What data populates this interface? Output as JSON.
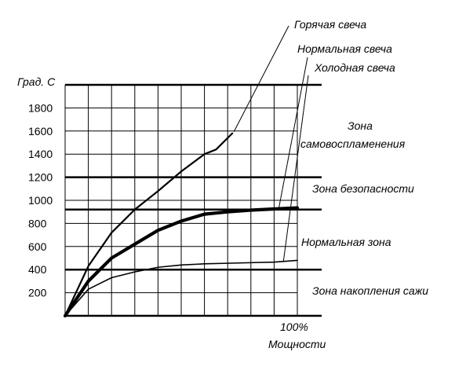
{
  "chart_data": {
    "type": "line",
    "ylabel": "Град. С",
    "xlabel_lines": [
      "100%",
      "Мощности"
    ],
    "yticks": [
      200,
      400,
      600,
      800,
      1000,
      1200,
      1400,
      1600,
      1800
    ],
    "ylim": [
      0,
      2000
    ],
    "xlim": [
      0,
      100
    ],
    "x_tick_label": "100%",
    "x_tick_value": 100,
    "grid": true,
    "zone_boundaries": [
      400,
      920,
      1200,
      2000
    ],
    "zones": [
      {
        "label": "Зона накопления сажи",
        "from": 0,
        "to": 400
      },
      {
        "label": "Нормальная зона",
        "from": 400,
        "to": 920
      },
      {
        "label": "Зона безопасности",
        "from": 920,
        "to": 1200
      },
      {
        "label_lines": [
          "Зона",
          "самовоспламенения"
        ],
        "from": 1200,
        "to": 2000
      }
    ],
    "series": [
      {
        "name": "Горячая свеча",
        "line_weight": "medium",
        "x": [
          0,
          10,
          20,
          30,
          40,
          50,
          60,
          65,
          70,
          72
        ],
        "y": [
          0,
          430,
          720,
          920,
          1080,
          1250,
          1400,
          1440,
          1540,
          1580
        ]
      },
      {
        "name": "Нормальная свеча",
        "line_weight": "heavy",
        "x": [
          0,
          10,
          20,
          30,
          40,
          50,
          60,
          70,
          80,
          90,
          100
        ],
        "y": [
          0,
          300,
          500,
          620,
          740,
          820,
          880,
          900,
          915,
          925,
          935
        ]
      },
      {
        "name": "Холодная свеча",
        "line_weight": "light",
        "x": [
          0,
          10,
          20,
          30,
          40,
          50,
          60,
          70,
          80,
          90,
          100
        ],
        "y": [
          0,
          230,
          330,
          380,
          420,
          440,
          450,
          455,
          460,
          465,
          480
        ]
      }
    ]
  }
}
